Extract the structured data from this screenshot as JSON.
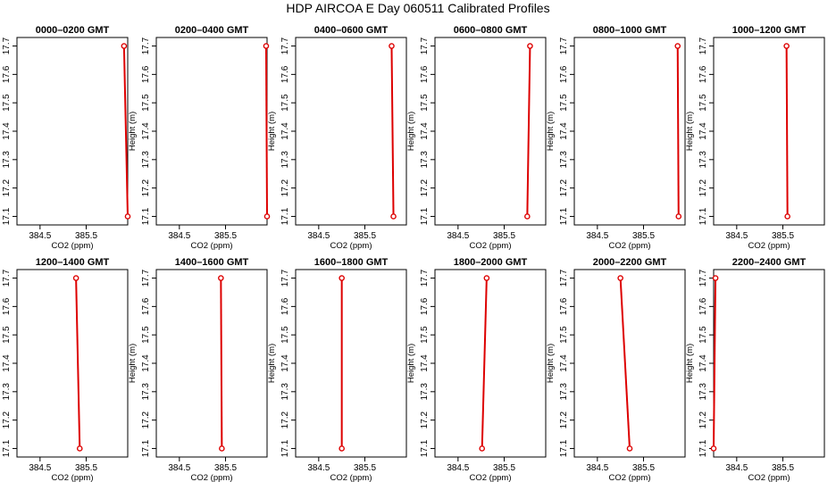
{
  "figure": {
    "title": "HDP  AIRCOA E  Day 060511  Calibrated Profiles",
    "colors": {
      "line": "#dd0000",
      "marker": "#dd0000",
      "axis": "#000000"
    }
  },
  "chart_data": [
    {
      "type": "line",
      "title": "0000–0200 GMT",
      "xlabel": "CO2 (ppm)",
      "ylabel": "Height (m)",
      "xlim": [
        384.0,
        386.4
      ],
      "ylim": [
        17.07,
        17.73
      ],
      "xticks": [
        384.5,
        385.5
      ],
      "xtick_labels": [
        "384.5",
        "385.5"
      ],
      "yticks": [
        17.1,
        17.2,
        17.3,
        17.4,
        17.5,
        17.6,
        17.7
      ],
      "ytick_labels": [
        "17.1",
        "17.2",
        "17.3",
        "17.4",
        "17.5",
        "17.6",
        "17.7"
      ],
      "series": [
        {
          "x": [
            386.32,
            386.4
          ],
          "y": [
            17.7,
            17.1
          ]
        }
      ]
    },
    {
      "type": "line",
      "title": "0200–0400 GMT",
      "xlabel": "CO2 (ppm)",
      "ylabel": "Height (m)",
      "xlim": [
        384.0,
        386.4
      ],
      "ylim": [
        17.07,
        17.73
      ],
      "xticks": [
        384.5,
        385.5
      ],
      "xtick_labels": [
        "384.5",
        "385.5"
      ],
      "yticks": [
        17.1,
        17.2,
        17.3,
        17.4,
        17.5,
        17.6,
        17.7
      ],
      "ytick_labels": [
        "17.1",
        "17.2",
        "17.3",
        "17.4",
        "17.5",
        "17.6",
        "17.7"
      ],
      "series": [
        {
          "x": [
            386.38,
            386.4
          ],
          "y": [
            17.7,
            17.1
          ]
        }
      ]
    },
    {
      "type": "line",
      "title": "0400–0600 GMT",
      "xlabel": "CO2 (ppm)",
      "ylabel": "Height (m)",
      "xlim": [
        384.0,
        386.4
      ],
      "ylim": [
        17.07,
        17.73
      ],
      "xticks": [
        384.5,
        385.5
      ],
      "xtick_labels": [
        "384.5",
        "385.5"
      ],
      "yticks": [
        17.1,
        17.2,
        17.3,
        17.4,
        17.5,
        17.6,
        17.7
      ],
      "ytick_labels": [
        "17.1",
        "17.2",
        "17.3",
        "17.4",
        "17.5",
        "17.6",
        "17.7"
      ],
      "series": [
        {
          "x": [
            386.08,
            386.12
          ],
          "y": [
            17.7,
            17.1
          ]
        }
      ]
    },
    {
      "type": "line",
      "title": "0600–0800 GMT",
      "xlabel": "CO2 (ppm)",
      "ylabel": "Height (m)",
      "xlim": [
        384.0,
        386.4
      ],
      "ylim": [
        17.07,
        17.73
      ],
      "xticks": [
        384.5,
        385.5
      ],
      "xtick_labels": [
        "384.5",
        "385.5"
      ],
      "yticks": [
        17.1,
        17.2,
        17.3,
        17.4,
        17.5,
        17.6,
        17.7
      ],
      "ytick_labels": [
        "17.1",
        "17.2",
        "17.3",
        "17.4",
        "17.5",
        "17.6",
        "17.7"
      ],
      "series": [
        {
          "x": [
            386.06,
            386.0
          ],
          "y": [
            17.7,
            17.1
          ]
        }
      ]
    },
    {
      "type": "line",
      "title": "0800–1000 GMT",
      "xlabel": "CO2 (ppm)",
      "ylabel": "Height (m)",
      "xlim": [
        384.0,
        386.4
      ],
      "ylim": [
        17.07,
        17.73
      ],
      "xticks": [
        384.5,
        385.5
      ],
      "xtick_labels": [
        "384.5",
        "385.5"
      ],
      "yticks": [
        17.1,
        17.2,
        17.3,
        17.4,
        17.5,
        17.6,
        17.7
      ],
      "ytick_labels": [
        "17.1",
        "17.2",
        "17.3",
        "17.4",
        "17.5",
        "17.6",
        "17.7"
      ],
      "series": [
        {
          "x": [
            386.24,
            386.26
          ],
          "y": [
            17.7,
            17.1
          ]
        }
      ]
    },
    {
      "type": "line",
      "title": "1000–1200 GMT",
      "xlabel": "CO2 (ppm)",
      "ylabel": "Height (m)",
      "xlim": [
        384.0,
        386.4
      ],
      "ylim": [
        17.07,
        17.73
      ],
      "xticks": [
        384.5,
        385.5
      ],
      "xtick_labels": [
        "384.5",
        "385.5"
      ],
      "yticks": [
        17.1,
        17.2,
        17.3,
        17.4,
        17.5,
        17.6,
        17.7
      ],
      "ytick_labels": [
        "17.1",
        "17.2",
        "17.3",
        "17.4",
        "17.5",
        "17.6",
        "17.7"
      ],
      "series": [
        {
          "x": [
            385.58,
            385.6
          ],
          "y": [
            17.7,
            17.1
          ]
        }
      ]
    },
    {
      "type": "line",
      "title": "1200–1400 GMT",
      "xlabel": "CO2 (ppm)",
      "ylabel": "Height (m)",
      "xlim": [
        384.0,
        386.4
      ],
      "ylim": [
        17.07,
        17.73
      ],
      "xticks": [
        384.5,
        385.5
      ],
      "xtick_labels": [
        "384.5",
        "385.5"
      ],
      "yticks": [
        17.1,
        17.2,
        17.3,
        17.4,
        17.5,
        17.6,
        17.7
      ],
      "ytick_labels": [
        "17.1",
        "17.2",
        "17.3",
        "17.4",
        "17.5",
        "17.6",
        "17.7"
      ],
      "series": [
        {
          "x": [
            385.28,
            385.36
          ],
          "y": [
            17.7,
            17.1
          ]
        }
      ]
    },
    {
      "type": "line",
      "title": "1400–1600 GMT",
      "xlabel": "CO2 (ppm)",
      "ylabel": "Height (m)",
      "xlim": [
        384.0,
        386.4
      ],
      "ylim": [
        17.07,
        17.73
      ],
      "xticks": [
        384.5,
        385.5
      ],
      "xtick_labels": [
        "384.5",
        "385.5"
      ],
      "yticks": [
        17.1,
        17.2,
        17.3,
        17.4,
        17.5,
        17.6,
        17.7
      ],
      "ytick_labels": [
        "17.1",
        "17.2",
        "17.3",
        "17.4",
        "17.5",
        "17.6",
        "17.7"
      ],
      "series": [
        {
          "x": [
            385.4,
            385.42
          ],
          "y": [
            17.7,
            17.1
          ]
        }
      ]
    },
    {
      "type": "line",
      "title": "1600–1800 GMT",
      "xlabel": "CO2 (ppm)",
      "ylabel": "Height (m)",
      "xlim": [
        384.0,
        386.4
      ],
      "ylim": [
        17.07,
        17.73
      ],
      "xticks": [
        384.5,
        385.5
      ],
      "xtick_labels": [
        "384.5",
        "385.5"
      ],
      "yticks": [
        17.1,
        17.2,
        17.3,
        17.4,
        17.5,
        17.6,
        17.7
      ],
      "ytick_labels": [
        "17.1",
        "17.2",
        "17.3",
        "17.4",
        "17.5",
        "17.6",
        "17.7"
      ],
      "series": [
        {
          "x": [
            385.0,
            385.0
          ],
          "y": [
            17.7,
            17.1
          ]
        }
      ]
    },
    {
      "type": "line",
      "title": "1800–2000 GMT",
      "xlabel": "CO2 (ppm)",
      "ylabel": "Height (m)",
      "xlim": [
        384.0,
        386.4
      ],
      "ylim": [
        17.07,
        17.73
      ],
      "xticks": [
        384.5,
        385.5
      ],
      "xtick_labels": [
        "384.5",
        "385.5"
      ],
      "yticks": [
        17.1,
        17.2,
        17.3,
        17.4,
        17.5,
        17.6,
        17.7
      ],
      "ytick_labels": [
        "17.1",
        "17.2",
        "17.3",
        "17.4",
        "17.5",
        "17.6",
        "17.7"
      ],
      "series": [
        {
          "x": [
            385.12,
            385.02
          ],
          "y": [
            17.7,
            17.1
          ]
        }
      ]
    },
    {
      "type": "line",
      "title": "2000–2200 GMT",
      "xlabel": "CO2 (ppm)",
      "ylabel": "Height (m)",
      "xlim": [
        384.0,
        386.4
      ],
      "ylim": [
        17.07,
        17.73
      ],
      "xticks": [
        384.5,
        385.5
      ],
      "xtick_labels": [
        "384.5",
        "385.5"
      ],
      "yticks": [
        17.1,
        17.2,
        17.3,
        17.4,
        17.5,
        17.6,
        17.7
      ],
      "ytick_labels": [
        "17.1",
        "17.2",
        "17.3",
        "17.4",
        "17.5",
        "17.6",
        "17.7"
      ],
      "series": [
        {
          "x": [
            385.0,
            385.2
          ],
          "y": [
            17.7,
            17.1
          ]
        }
      ]
    },
    {
      "type": "line",
      "title": "2200–2400 GMT",
      "xlabel": "CO2 (ppm)",
      "ylabel": "Height (m)",
      "xlim": [
        384.0,
        386.4
      ],
      "ylim": [
        17.07,
        17.73
      ],
      "xticks": [
        384.5,
        385.5
      ],
      "xtick_labels": [
        "384.5",
        "385.5"
      ],
      "yticks": [
        17.1,
        17.2,
        17.3,
        17.4,
        17.5,
        17.6,
        17.7
      ],
      "ytick_labels": [
        "17.1",
        "17.2",
        "17.3",
        "17.4",
        "17.5",
        "17.6",
        "17.7"
      ],
      "series": [
        {
          "x": [
            384.04,
            384.0
          ],
          "y": [
            17.7,
            17.1
          ]
        }
      ]
    }
  ]
}
